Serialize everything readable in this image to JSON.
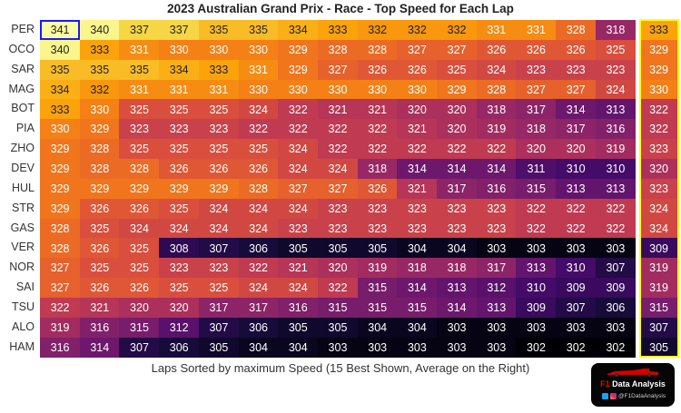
{
  "chart_data": {
    "type": "heatmap",
    "title": "2023 Australian Grand Prix - Race - Top Speed for Each Lap",
    "xlabel": "Laps Sorted by maximum Speed (15 Best Shown, Average on the Right)",
    "ylabel": "",
    "colormap": "inferno",
    "value_range": [
      302,
      341
    ],
    "rows": [
      "PER",
      "OCO",
      "SAR",
      "MAG",
      "BOT",
      "PIA",
      "ZHO",
      "DEV",
      "HUL",
      "STR",
      "GAS",
      "VER",
      "NOR",
      "SAI",
      "TSU",
      "ALO",
      "HAM"
    ],
    "values": [
      [
        341,
        340,
        337,
        337,
        335,
        335,
        334,
        333,
        332,
        332,
        332,
        331,
        331,
        328,
        318
      ],
      [
        340,
        333,
        331,
        330,
        330,
        330,
        329,
        328,
        328,
        327,
        327,
        326,
        326,
        326,
        325
      ],
      [
        335,
        335,
        335,
        334,
        333,
        331,
        329,
        327,
        326,
        326,
        325,
        324,
        323,
        323,
        323
      ],
      [
        334,
        332,
        331,
        331,
        331,
        330,
        330,
        330,
        330,
        330,
        329,
        328,
        327,
        327,
        324
      ],
      [
        333,
        330,
        325,
        325,
        325,
        324,
        322,
        321,
        321,
        320,
        320,
        318,
        317,
        314,
        313
      ],
      [
        330,
        329,
        323,
        323,
        323,
        322,
        322,
        322,
        322,
        321,
        320,
        319,
        318,
        317,
        316
      ],
      [
        329,
        328,
        325,
        325,
        325,
        325,
        324,
        322,
        322,
        322,
        322,
        322,
        320,
        320,
        319
      ],
      [
        329,
        328,
        328,
        326,
        326,
        326,
        324,
        324,
        318,
        314,
        314,
        314,
        311,
        310,
        310
      ],
      [
        329,
        329,
        329,
        329,
        329,
        328,
        327,
        327,
        326,
        321,
        317,
        316,
        315,
        313,
        313
      ],
      [
        329,
        326,
        326,
        325,
        324,
        324,
        324,
        323,
        323,
        323,
        323,
        323,
        322,
        322,
        322
      ],
      [
        328,
        325,
        324,
        324,
        324,
        324,
        323,
        323,
        323,
        323,
        323,
        323,
        322,
        322,
        322
      ],
      [
        328,
        326,
        325,
        308,
        307,
        306,
        305,
        305,
        305,
        304,
        304,
        303,
        303,
        303,
        303
      ],
      [
        327,
        325,
        325,
        323,
        323,
        322,
        321,
        320,
        319,
        318,
        318,
        317,
        313,
        310,
        307
      ],
      [
        327,
        326,
        326,
        325,
        325,
        324,
        324,
        322,
        315,
        314,
        313,
        312,
        310,
        309,
        309
      ],
      [
        322,
        321,
        320,
        320,
        317,
        317,
        316,
        315,
        315,
        315,
        314,
        313,
        309,
        307,
        306
      ],
      [
        319,
        316,
        315,
        312,
        307,
        306,
        305,
        305,
        304,
        304,
        303,
        303,
        303,
        303,
        303
      ],
      [
        316,
        314,
        307,
        306,
        305,
        304,
        304,
        303,
        303,
        303,
        303,
        303,
        302,
        302,
        302
      ]
    ],
    "averages": [
      333,
      329,
      329,
      330,
      322,
      322,
      323,
      320,
      323,
      324,
      324,
      309,
      319,
      319,
      315,
      307,
      305
    ],
    "highlight": {
      "row": "PER",
      "column": 1,
      "color": "#1a1aff"
    },
    "average_box_color": "#ffff00"
  },
  "logo": {
    "brand_prefix": "F1",
    "brand_name": "Data Analysis",
    "handle": "@F1DataAnalysis"
  }
}
